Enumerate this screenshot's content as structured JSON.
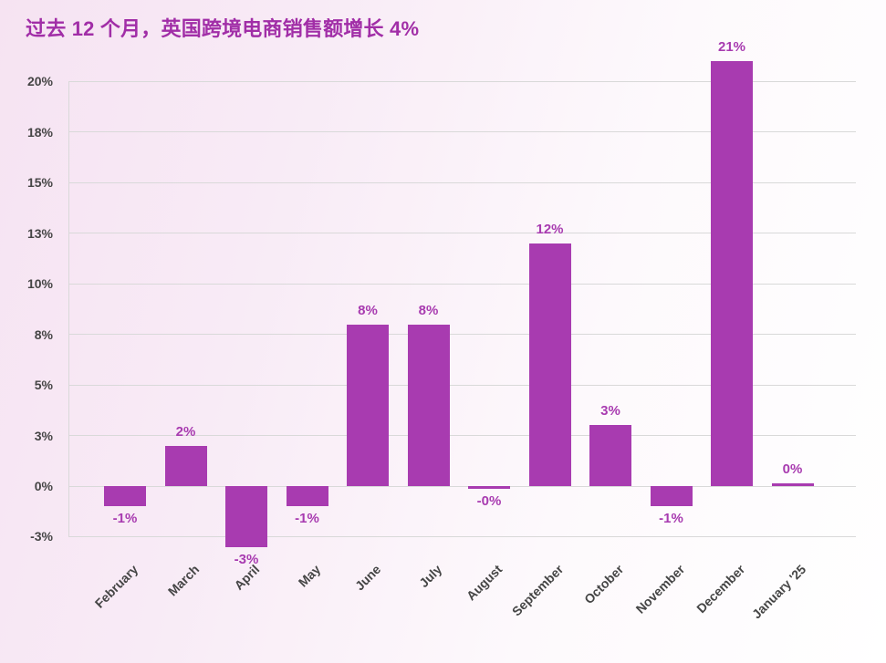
{
  "page": {
    "title": "过去 12 个月，英国跨境电商销售额增长 4%"
  },
  "chart_data": {
    "type": "bar",
    "title": "过去 12 个月，英国跨境电商销售额增长 4%",
    "categories": [
      "February",
      "March",
      "April",
      "May",
      "June",
      "July",
      "August",
      "September",
      "October",
      "November",
      "December",
      "January '25"
    ],
    "values": [
      -1,
      2,
      -3,
      -1,
      8,
      8,
      0,
      12,
      3,
      -1,
      21,
      0
    ],
    "value_labels": [
      "-1%",
      "2%",
      "-3%",
      "-1%",
      "8%",
      "8%",
      "-0%",
      "12%",
      "3%",
      "-1%",
      "21%",
      "0%"
    ],
    "y_ticks": [
      {
        "value": 20,
        "label": "20%"
      },
      {
        "value": 17.5,
        "label": "18%"
      },
      {
        "value": 15,
        "label": "15%"
      },
      {
        "value": 12.5,
        "label": "13%"
      },
      {
        "value": 10,
        "label": "10%"
      },
      {
        "value": 7.5,
        "label": "8%"
      },
      {
        "value": 5,
        "label": "5%"
      },
      {
        "value": 2.5,
        "label": "3%"
      },
      {
        "value": 0,
        "label": "0%"
      },
      {
        "value": -2.5,
        "label": "-3%"
      }
    ],
    "ylim": [
      -2.5,
      21
    ],
    "xlabel": "",
    "ylabel": "",
    "grid": "horizontal",
    "legend": "none"
  },
  "colors": {
    "bar": "#a83bb0",
    "title": "#a12ea7",
    "value_label": "#a83bb0",
    "axis_text": "#454545",
    "gridline": "#d9d9d9",
    "background_left": "#f6e3f2",
    "background_right": "#ffffff"
  }
}
